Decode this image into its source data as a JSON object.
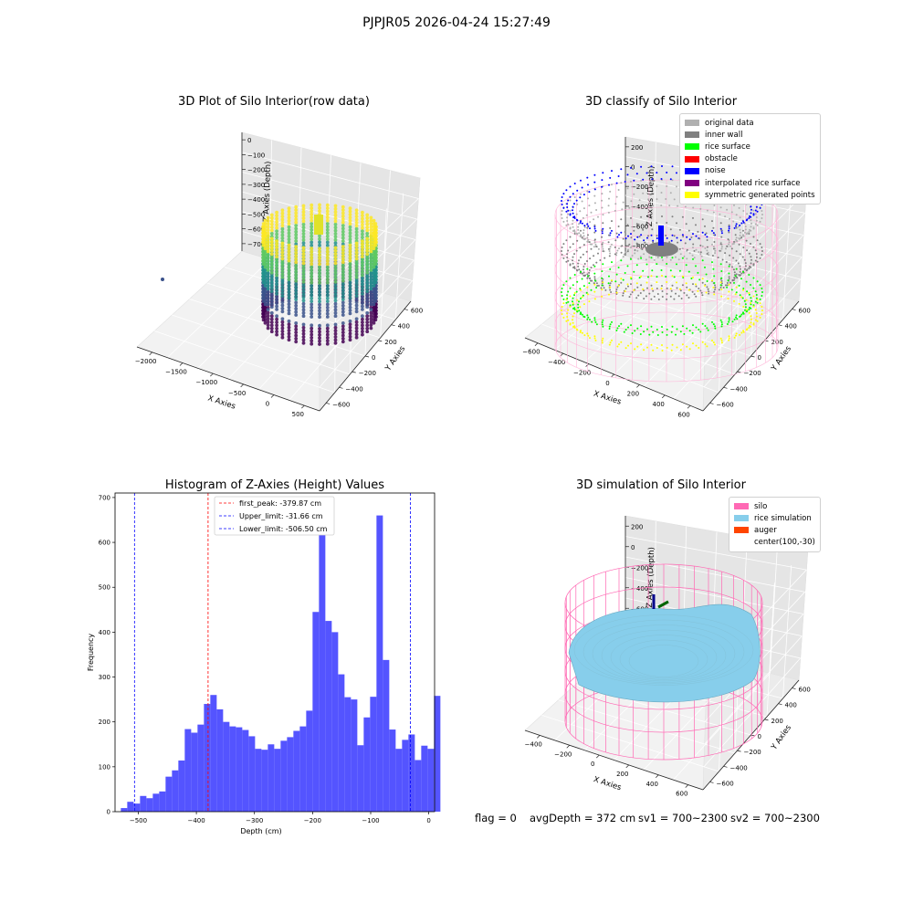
{
  "figure": {
    "title": "PJPJR05 2026-04-24 15:27:49",
    "status": {
      "flag": "flag = 0",
      "avg_depth": "avgDepth = 372 cm",
      "sv1": "sv1 = 700~2300",
      "sv2": "sv2 = 700~2300"
    }
  },
  "panels": {
    "raw": {
      "title": "3D Plot of Silo Interior(row data)",
      "xlabel": "X Axies",
      "ylabel": "Y Axies",
      "zlabel": "Z Axies (Depth)",
      "xticks": [
        "−2000",
        "−1500",
        "−1000",
        "−500",
        "0",
        "500"
      ],
      "yticks": [
        "−600",
        "−400",
        "−200",
        "0",
        "200",
        "400",
        "600"
      ],
      "zticks": [
        "0",
        "−100",
        "−200",
        "−300",
        "−400",
        "−500",
        "−600",
        "−700"
      ],
      "colormap": [
        "#440154",
        "#3b528b",
        "#21918c",
        "#5ec962",
        "#fde725"
      ]
    },
    "classify": {
      "title": "3D classify of Silo Interior",
      "xlabel": "X Axies",
      "ylabel": "Y Axies",
      "zlabel": "Z Axies (Depth)",
      "xticks": [
        "−600",
        "−400",
        "−200",
        "0",
        "200",
        "400",
        "600"
      ],
      "yticks": [
        "−600",
        "−400",
        "−200",
        "0",
        "200",
        "400",
        "600"
      ],
      "zticks": [
        "200",
        "0",
        "−200",
        "−400",
        "−600",
        "−800"
      ],
      "legend": [
        {
          "label": "original data",
          "color": "#b0b0b0"
        },
        {
          "label": "inner wall",
          "color": "#808080"
        },
        {
          "label": "rice surface",
          "color": "#00ff00"
        },
        {
          "label": "obstacle",
          "color": "#ff0000"
        },
        {
          "label": "noise",
          "color": "#0000ff"
        },
        {
          "label": "interpolated rice surface",
          "color": "#800080"
        },
        {
          "label": "symmetric generated points",
          "color": "#ffff00"
        }
      ]
    },
    "simulation": {
      "title": "3D simulation of Silo Interior",
      "xlabel": "X Axies",
      "ylabel": "Y Axies",
      "zlabel": "Z Axies (Depth)",
      "xticks": [
        "−400",
        "−200",
        "0",
        "200",
        "400",
        "600"
      ],
      "yticks": [
        "−600",
        "−400",
        "−200",
        "0",
        "200",
        "400",
        "600"
      ],
      "zticks": [
        "200",
        "0",
        "−200",
        "−400",
        "−600",
        "−800"
      ],
      "legend": [
        {
          "label": "silo",
          "color": "#ff69b4"
        },
        {
          "label": "rice simulation",
          "color": "#87ceeb"
        },
        {
          "label": "auger",
          "color": "#ff4500"
        },
        {
          "label": "center(100,-30)",
          "color": ""
        }
      ]
    }
  },
  "chart_data": [
    {
      "type": "histogram",
      "title": "Histogram of Z-Axies (Height) Values",
      "xlabel": "Depth (cm)",
      "ylabel": "Frequency",
      "bar_color": "#4b4bff",
      "xlim": [
        -540,
        10
      ],
      "ylim": [
        0,
        710
      ],
      "xticks": [
        -500,
        -400,
        -300,
        -200,
        -100,
        0
      ],
      "yticks": [
        0,
        100,
        200,
        300,
        400,
        500,
        600,
        700
      ],
      "bins_start": -530,
      "bin_width": 11,
      "counts": [
        8,
        22,
        18,
        35,
        30,
        40,
        45,
        78,
        92,
        114,
        184,
        176,
        194,
        240,
        260,
        228,
        200,
        190,
        188,
        182,
        168,
        140,
        138,
        150,
        140,
        158,
        166,
        180,
        190,
        225,
        445,
        670,
        425,
        400,
        306,
        255,
        250,
        148,
        210,
        256,
        660,
        338,
        183,
        140,
        160,
        172,
        115,
        147,
        140,
        258
      ],
      "reference_lines": [
        {
          "value": -379.87,
          "color": "red",
          "label": "first_peak: -379.87 cm"
        },
        {
          "value": -31.66,
          "color": "blue",
          "label": "Upper_limit: -31.66 cm"
        },
        {
          "value": -506.5,
          "color": "blue",
          "label": "Lower_limit: -506.50 cm"
        }
      ]
    },
    {
      "type": "scatter3d",
      "title": "3D Plot of Silo Interior(row data)",
      "xlim": [
        -2100,
        600
      ],
      "ylim": [
        -650,
        650
      ],
      "zlim": [
        -800,
        30
      ]
    },
    {
      "type": "scatter3d",
      "title": "3D classify of Silo Interior",
      "xlim": [
        -650,
        650
      ],
      "ylim": [
        -650,
        650
      ],
      "zlim": [
        -900,
        250
      ]
    },
    {
      "type": "surface3d",
      "title": "3D simulation of Silo Interior",
      "xlim": [
        -500,
        700
      ],
      "ylim": [
        -650,
        650
      ],
      "zlim": [
        -900,
        300
      ]
    }
  ]
}
